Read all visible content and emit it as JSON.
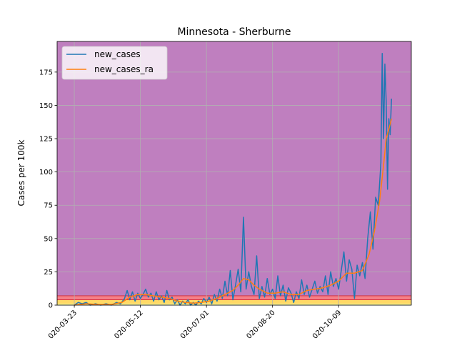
{
  "chart_data": {
    "type": "line",
    "title": "Minnesota - Sherburne",
    "xlabel": "",
    "ylabel": "Cases per 100k",
    "xlim": [
      "2020-03-10",
      "2020-12-03"
    ],
    "ylim": [
      0,
      198
    ],
    "x_ticks": [
      "2020-03-23",
      "2020-05-12",
      "2020-07-01",
      "2020-08-20",
      "2020-10-09"
    ],
    "x_tick_labels_visible": [
      "020-03-23",
      "020-05-12",
      "020-07-01",
      "020-08-20",
      "020-10-09"
    ],
    "y_ticks": [
      0,
      25,
      50,
      75,
      100,
      125,
      150,
      175
    ],
    "grid": true,
    "legend_position": "top-left",
    "background_bands": [
      {
        "from": 0,
        "to": 1,
        "color": "#ffff99"
      },
      {
        "from": 1,
        "to": 4,
        "color": "#ffd966"
      },
      {
        "from": 4,
        "to": 7,
        "color": "#f4808a"
      },
      {
        "from": 7,
        "to": 198,
        "color": "#bf7fbf"
      }
    ],
    "band_edge_color": "#d62728",
    "series": [
      {
        "name": "new_cases",
        "color": "#1f77b4",
        "points": [
          [
            "2020-03-23",
            0
          ],
          [
            "2020-03-26",
            2
          ],
          [
            "2020-03-29",
            1
          ],
          [
            "2020-04-01",
            2
          ],
          [
            "2020-04-04",
            0
          ],
          [
            "2020-04-08",
            1
          ],
          [
            "2020-04-12",
            0
          ],
          [
            "2020-04-16",
            1
          ],
          [
            "2020-04-20",
            0
          ],
          [
            "2020-04-24",
            2
          ],
          [
            "2020-04-27",
            1
          ],
          [
            "2020-04-30",
            5
          ],
          [
            "2020-05-02",
            11
          ],
          [
            "2020-05-04",
            4
          ],
          [
            "2020-05-06",
            10
          ],
          [
            "2020-05-08",
            3
          ],
          [
            "2020-05-10",
            9
          ],
          [
            "2020-05-12",
            5
          ],
          [
            "2020-05-14",
            8
          ],
          [
            "2020-05-16",
            12
          ],
          [
            "2020-05-18",
            6
          ],
          [
            "2020-05-20",
            9
          ],
          [
            "2020-05-22",
            3
          ],
          [
            "2020-05-24",
            10
          ],
          [
            "2020-05-26",
            4
          ],
          [
            "2020-05-28",
            7
          ],
          [
            "2020-05-30",
            2
          ],
          [
            "2020-06-01",
            11
          ],
          [
            "2020-06-03",
            4
          ],
          [
            "2020-06-05",
            6
          ],
          [
            "2020-06-07",
            1
          ],
          [
            "2020-06-09",
            4
          ],
          [
            "2020-06-11",
            0
          ],
          [
            "2020-06-13",
            3
          ],
          [
            "2020-06-15",
            1
          ],
          [
            "2020-06-17",
            4
          ],
          [
            "2020-06-19",
            0
          ],
          [
            "2020-06-21",
            2
          ],
          [
            "2020-06-23",
            0
          ],
          [
            "2020-06-25",
            3
          ],
          [
            "2020-06-27",
            1
          ],
          [
            "2020-06-29",
            5
          ],
          [
            "2020-07-01",
            2
          ],
          [
            "2020-07-03",
            6
          ],
          [
            "2020-07-05",
            1
          ],
          [
            "2020-07-07",
            8
          ],
          [
            "2020-07-09",
            3
          ],
          [
            "2020-07-11",
            12
          ],
          [
            "2020-07-13",
            5
          ],
          [
            "2020-07-15",
            18
          ],
          [
            "2020-07-17",
            7
          ],
          [
            "2020-07-19",
            26
          ],
          [
            "2020-07-21",
            4
          ],
          [
            "2020-07-23",
            15
          ],
          [
            "2020-07-25",
            27
          ],
          [
            "2020-07-27",
            10
          ],
          [
            "2020-07-29",
            66
          ],
          [
            "2020-07-31",
            12
          ],
          [
            "2020-08-02",
            25
          ],
          [
            "2020-08-04",
            14
          ],
          [
            "2020-08-06",
            8
          ],
          [
            "2020-08-08",
            37
          ],
          [
            "2020-08-10",
            5
          ],
          [
            "2020-08-12",
            14
          ],
          [
            "2020-08-14",
            6
          ],
          [
            "2020-08-16",
            20
          ],
          [
            "2020-08-18",
            8
          ],
          [
            "2020-08-20",
            12
          ],
          [
            "2020-08-22",
            5
          ],
          [
            "2020-08-24",
            22
          ],
          [
            "2020-08-26",
            7
          ],
          [
            "2020-08-28",
            15
          ],
          [
            "2020-08-30",
            3
          ],
          [
            "2020-09-01",
            13
          ],
          [
            "2020-09-03",
            9
          ],
          [
            "2020-09-05",
            2
          ],
          [
            "2020-09-07",
            10
          ],
          [
            "2020-09-09",
            5
          ],
          [
            "2020-09-11",
            19
          ],
          [
            "2020-09-13",
            8
          ],
          [
            "2020-09-15",
            15
          ],
          [
            "2020-09-17",
            6
          ],
          [
            "2020-09-19",
            12
          ],
          [
            "2020-09-21",
            18
          ],
          [
            "2020-09-23",
            9
          ],
          [
            "2020-09-25",
            14
          ],
          [
            "2020-09-27",
            10
          ],
          [
            "2020-09-29",
            22
          ],
          [
            "2020-10-01",
            8
          ],
          [
            "2020-10-03",
            25
          ],
          [
            "2020-10-05",
            14
          ],
          [
            "2020-10-07",
            20
          ],
          [
            "2020-10-09",
            12
          ],
          [
            "2020-10-11",
            26
          ],
          [
            "2020-10-13",
            40
          ],
          [
            "2020-10-15",
            18
          ],
          [
            "2020-10-17",
            34
          ],
          [
            "2020-10-19",
            27
          ],
          [
            "2020-10-21",
            5
          ],
          [
            "2020-10-23",
            30
          ],
          [
            "2020-10-25",
            22
          ],
          [
            "2020-10-27",
            32
          ],
          [
            "2020-10-29",
            20
          ],
          [
            "2020-10-31",
            50
          ],
          [
            "2020-11-02",
            70
          ],
          [
            "2020-11-04",
            42
          ],
          [
            "2020-11-06",
            81
          ],
          [
            "2020-11-08",
            75
          ],
          [
            "2020-11-10",
            107
          ],
          [
            "2020-11-11",
            189
          ],
          [
            "2020-11-12",
            125
          ],
          [
            "2020-11-13",
            181
          ],
          [
            "2020-11-14",
            153
          ],
          [
            "2020-11-15",
            87
          ],
          [
            "2020-11-16",
            140
          ],
          [
            "2020-11-17",
            128
          ],
          [
            "2020-11-18",
            155
          ]
        ]
      },
      {
        "name": "new_cases_ra",
        "color": "#ff7f0e",
        "points": [
          [
            "2020-03-23",
            0
          ],
          [
            "2020-04-01",
            1
          ],
          [
            "2020-04-10",
            0.5
          ],
          [
            "2020-04-20",
            0.5
          ],
          [
            "2020-04-28",
            2
          ],
          [
            "2020-05-04",
            6
          ],
          [
            "2020-05-10",
            8
          ],
          [
            "2020-05-16",
            8
          ],
          [
            "2020-05-22",
            7
          ],
          [
            "2020-05-28",
            6
          ],
          [
            "2020-06-03",
            5
          ],
          [
            "2020-06-09",
            3
          ],
          [
            "2020-06-15",
            2
          ],
          [
            "2020-06-21",
            1.5
          ],
          [
            "2020-06-27",
            2
          ],
          [
            "2020-07-03",
            3
          ],
          [
            "2020-07-09",
            5
          ],
          [
            "2020-07-15",
            8
          ],
          [
            "2020-07-21",
            11
          ],
          [
            "2020-07-25",
            15
          ],
          [
            "2020-07-29",
            20
          ],
          [
            "2020-08-02",
            19
          ],
          [
            "2020-08-06",
            15
          ],
          [
            "2020-08-10",
            12
          ],
          [
            "2020-08-16",
            9
          ],
          [
            "2020-08-22",
            9
          ],
          [
            "2020-08-28",
            10
          ],
          [
            "2020-09-03",
            8
          ],
          [
            "2020-09-09",
            8
          ],
          [
            "2020-09-15",
            11
          ],
          [
            "2020-09-21",
            12
          ],
          [
            "2020-09-27",
            13
          ],
          [
            "2020-10-03",
            15
          ],
          [
            "2020-10-09",
            18
          ],
          [
            "2020-10-15",
            24
          ],
          [
            "2020-10-21",
            24
          ],
          [
            "2020-10-27",
            26
          ],
          [
            "2020-11-01",
            38
          ],
          [
            "2020-11-05",
            55
          ],
          [
            "2020-11-09",
            78
          ],
          [
            "2020-11-12",
            105
          ],
          [
            "2020-11-14",
            125
          ],
          [
            "2020-11-16",
            132
          ],
          [
            "2020-11-18",
            140
          ]
        ]
      }
    ]
  }
}
